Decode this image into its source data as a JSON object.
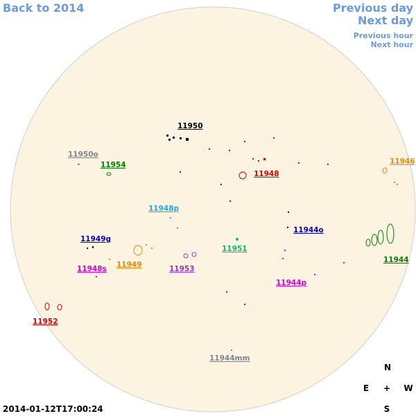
{
  "nav": {
    "back": "Back to 2014",
    "prev_day": "Previous day",
    "next_day": "Next day",
    "prev_hour": "Previous hour",
    "next_hour": "Next hour"
  },
  "regions": [
    {
      "label": "11950",
      "color": "#000000"
    },
    {
      "label": "11950o",
      "color": "#778899"
    },
    {
      "label": "11954",
      "color": "#008000"
    },
    {
      "label": "11948",
      "color": "#dd0000"
    },
    {
      "label": "11946",
      "color": "#ee8800"
    },
    {
      "label": "11948p",
      "color": "#18aee0"
    },
    {
      "label": "11944o",
      "color": "#0000cc"
    },
    {
      "label": "11949g",
      "color": "#0000cc"
    },
    {
      "label": "11951",
      "color": "#00c070"
    },
    {
      "label": "11944",
      "color": "#008000"
    },
    {
      "label": "11948s",
      "color": "#dd00dd"
    },
    {
      "label": "11949",
      "color": "#ee8800"
    },
    {
      "label": "11953",
      "color": "#9933cc"
    },
    {
      "label": "11944p",
      "color": "#dd00dd"
    },
    {
      "label": "11952",
      "color": "#dd0000"
    },
    {
      "label": "11944mm",
      "color": "#778899"
    }
  ],
  "compass": {
    "north": "N",
    "east": "E",
    "center": "+",
    "west": "W",
    "south": "S"
  },
  "timestamp": "2014-01-12T17:00:24"
}
